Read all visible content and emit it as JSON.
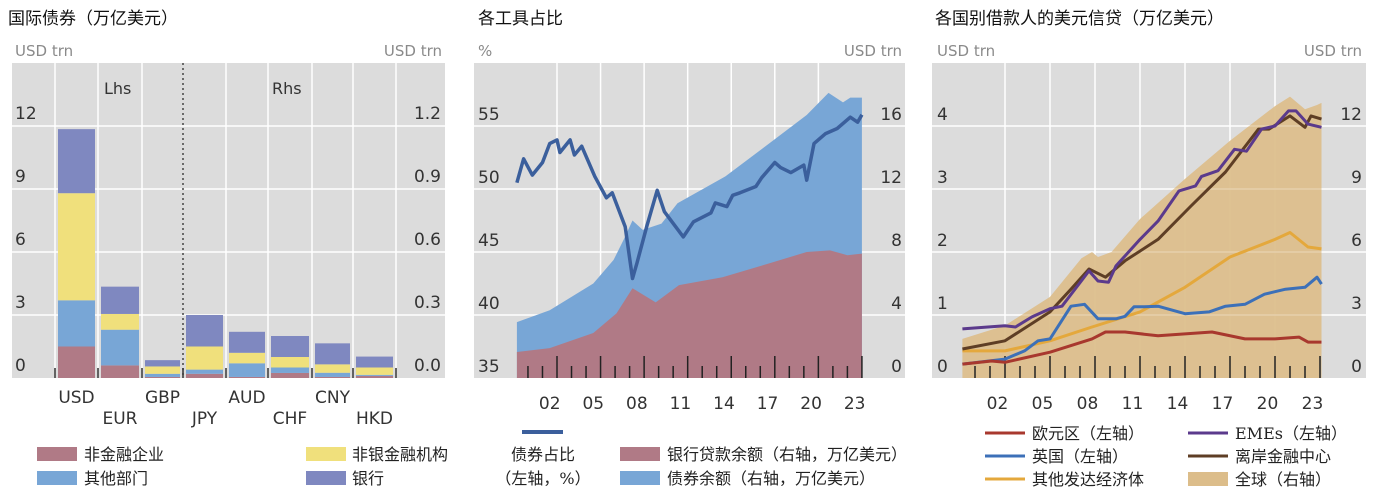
{
  "colors": {
    "plot_bg": "#dcdcdc",
    "grid": "#ffffff",
    "nonfin": "#b07a86",
    "other": "#78a6d6",
    "nbfi": "#f0e07c",
    "bank": "#7f88c0",
    "share_line": "#3b5f9c",
    "loans": "#b07a86",
    "bonds": "#78a6d6",
    "euro": "#a8382e",
    "uk": "#3c70b8",
    "other_adv": "#e4a83c",
    "emes": "#5b3a8c",
    "offshore": "#5e3e25",
    "global": "#dcbd8a"
  },
  "chart_data": [
    {
      "type": "bar",
      "stacked": true,
      "title": "国际债券（万亿美元）",
      "left_unit": "USD trn",
      "right_unit": "USD trn",
      "left_ticks": [
        "0",
        "3",
        "6",
        "9",
        "12"
      ],
      "right_ticks": [
        "0.0",
        "0.3",
        "0.6",
        "0.9",
        "1.2"
      ],
      "ylim_left": [
        0,
        15
      ],
      "ylim_right": [
        0,
        1.5
      ],
      "annotations": {
        "lhs": "Lhs",
        "rhs": "Rhs"
      },
      "categories": [
        "USD",
        "EUR",
        "GBP",
        "JPY",
        "AUD",
        "CHF",
        "CNY",
        "HKD"
      ],
      "axis": [
        "left",
        "left",
        "left",
        "right",
        "right",
        "right",
        "right",
        "right"
      ],
      "series": [
        {
          "name": "非金融企业",
          "color_key": "nonfin",
          "values": [
            1.5,
            0.6,
            0.05,
            0.02,
            0.005,
            0.024,
            0.005,
            0.01
          ]
        },
        {
          "name": "其他部门",
          "color_key": "other",
          "values": [
            2.2,
            1.7,
            0.15,
            0.02,
            0.065,
            0.026,
            0.02,
            0.005
          ]
        },
        {
          "name": "非银金融机构",
          "color_key": "nbfi",
          "values": [
            5.1,
            0.75,
            0.35,
            0.11,
            0.05,
            0.05,
            0.04,
            0.035
          ]
        },
        {
          "name": "银行",
          "color_key": "bank",
          "values": [
            3.05,
            1.3,
            0.3,
            0.15,
            0.1,
            0.1,
            0.1,
            0.052
          ]
        }
      ],
      "grid": true
    },
    {
      "type": "area+line",
      "title": "各工具占比",
      "left_unit": "%",
      "right_unit": "USD trn",
      "left_ticks": [
        35,
        40,
        45,
        50,
        55
      ],
      "right_ticks": [
        0,
        4,
        8,
        12,
        16
      ],
      "ylim_left": [
        35,
        60
      ],
      "ylim_right": [
        0,
        20
      ],
      "x_ticks": [
        "02",
        "05",
        "08",
        "11",
        "14",
        "17",
        "20",
        "23"
      ],
      "xlim": [
        2000,
        2024
      ],
      "line": {
        "name": "债券占比",
        "name2": "（左轴，%）",
        "axis": "left",
        "points": [
          [
            2000.24,
            50.5
          ],
          [
            2000.7,
            52.4
          ],
          [
            2001.3,
            51.1
          ],
          [
            2002,
            52.1
          ],
          [
            2002.5,
            53.6
          ],
          [
            2003,
            53.9
          ],
          [
            2003.2,
            52.9
          ],
          [
            2003.9,
            53.9
          ],
          [
            2004.2,
            52.7
          ],
          [
            2004.7,
            53.4
          ],
          [
            2005.6,
            51
          ],
          [
            2006.4,
            49.3
          ],
          [
            2006.8,
            49.7
          ],
          [
            2007.7,
            47
          ],
          [
            2008.2,
            42.9
          ],
          [
            2008.5,
            44.1
          ],
          [
            2009.2,
            47.1
          ],
          [
            2009.9,
            49.9
          ],
          [
            2010.4,
            48.2
          ],
          [
            2011.7,
            46.2
          ],
          [
            2012.4,
            47.4
          ],
          [
            2013.6,
            48.1
          ],
          [
            2013.9,
            48.9
          ],
          [
            2014.7,
            48.6
          ],
          [
            2015.1,
            49.5
          ],
          [
            2015.6,
            49.7
          ],
          [
            2016.7,
            50.2
          ],
          [
            2017.1,
            50.9
          ],
          [
            2018,
            52.1
          ],
          [
            2018.4,
            51.7
          ],
          [
            2019.1,
            51.3
          ],
          [
            2020,
            51.9
          ],
          [
            2020.2,
            50.7
          ],
          [
            2020.7,
            53.6
          ],
          [
            2021.5,
            54.4
          ],
          [
            2022.3,
            54.8
          ],
          [
            2023.2,
            55.7
          ],
          [
            2023.7,
            55.3
          ],
          [
            2024,
            55.9
          ]
        ]
      },
      "areas": [
        {
          "name": "银行贷款余额（右轴，万亿美元）",
          "color_key": "loans",
          "axis": "right",
          "points": [
            [
              2000.24,
              1.65
            ],
            [
              2002.5,
              1.9
            ],
            [
              2005.5,
              2.86
            ],
            [
              2007.1,
              4.1
            ],
            [
              2008.2,
              5.7
            ],
            [
              2009.8,
              4.8
            ],
            [
              2011.4,
              5.9
            ],
            [
              2014.4,
              6.4
            ],
            [
              2017.7,
              7.3
            ],
            [
              2020.2,
              8.0
            ],
            [
              2021.8,
              8.1
            ],
            [
              2023,
              7.8
            ],
            [
              2024,
              7.9
            ]
          ]
        },
        {
          "name": "债券余额（右轴，万亿美元）",
          "color_key": "bonds",
          "axis": "right",
          "stacked_total": true,
          "points": [
            [
              2000.24,
              3.55
            ],
            [
              2002.5,
              4.3
            ],
            [
              2005.5,
              6.0
            ],
            [
              2006.9,
              7.5
            ],
            [
              2007.6,
              8.8
            ],
            [
              2008.2,
              10.0
            ],
            [
              2008.9,
              9.4
            ],
            [
              2010.2,
              9.8
            ],
            [
              2011.3,
              11.1
            ],
            [
              2014.6,
              12.8
            ],
            [
              2018.2,
              15.3
            ],
            [
              2020.2,
              16.7
            ],
            [
              2021.7,
              18.1
            ],
            [
              2022.7,
              17.5
            ],
            [
              2023.2,
              17.8
            ],
            [
              2024,
              17.8
            ]
          ]
        }
      ],
      "grid": true
    },
    {
      "type": "line+area",
      "title": "各国别借款人的美元信贷（万亿美元）",
      "left_unit": "USD trn",
      "right_unit": "USD trn",
      "left_ticks": [
        0,
        1,
        2,
        3,
        4
      ],
      "right_ticks": [
        0,
        3,
        6,
        9,
        12
      ],
      "ylim_left": [
        0,
        5
      ],
      "ylim_right": [
        0,
        15
      ],
      "x_ticks": [
        "02",
        "05",
        "08",
        "11",
        "14",
        "17",
        "20",
        "23"
      ],
      "xlim": [
        2000,
        2024
      ],
      "area": {
        "name": "全球（右轴）",
        "color_key": "global",
        "axis": "right",
        "points": [
          [
            2000.16,
            1.86
          ],
          [
            2003,
            2.5
          ],
          [
            2006,
            3.86
          ],
          [
            2008.1,
            5.7
          ],
          [
            2008.8,
            6.0
          ],
          [
            2009.2,
            5.76
          ],
          [
            2010.1,
            6.0
          ],
          [
            2012,
            7.57
          ],
          [
            2015,
            9.48
          ],
          [
            2018,
            11.3
          ],
          [
            2021,
            12.95
          ],
          [
            2022,
            13.4
          ],
          [
            2023,
            12.8
          ],
          [
            2023.8,
            13.0
          ],
          [
            2024.1,
            13.1
          ]
        ]
      },
      "lines": [
        {
          "name": "其他发达经济体",
          "color_key": "other_adv",
          "axis": "left",
          "points": [
            [
              2000.16,
              0.43
            ],
            [
              2003,
              0.43
            ],
            [
              2006,
              0.59
            ],
            [
              2008.8,
              0.81
            ],
            [
              2012,
              1.05
            ],
            [
              2015,
              1.44
            ],
            [
              2018,
              1.92
            ],
            [
              2021,
              2.2
            ],
            [
              2022,
              2.31
            ],
            [
              2023.2,
              2.08
            ],
            [
              2024.1,
              2.05
            ]
          ]
        },
        {
          "name": "英国（左轴）",
          "color_key": "uk",
          "axis": "left",
          "points": [
            [
              2000.16,
              0.22
            ],
            [
              2003,
              0.3
            ],
            [
              2004.3,
              0.43
            ],
            [
              2005.2,
              0.59
            ],
            [
              2006,
              0.62
            ],
            [
              2007.4,
              1.14
            ],
            [
              2008.3,
              1.17
            ],
            [
              2009.2,
              0.94
            ],
            [
              2010.4,
              0.94
            ],
            [
              2011,
              0.98
            ],
            [
              2011.6,
              1.13
            ],
            [
              2012.3,
              1.13
            ],
            [
              2013.2,
              1.14
            ],
            [
              2015,
              1.02
            ],
            [
              2016.6,
              1.05
            ],
            [
              2017.7,
              1.14
            ],
            [
              2019,
              1.17
            ],
            [
              2020.3,
              1.33
            ],
            [
              2021.7,
              1.41
            ],
            [
              2023,
              1.44
            ],
            [
              2023.8,
              1.6
            ],
            [
              2024.1,
              1.49
            ]
          ]
        },
        {
          "name": "欧元区（左轴）",
          "color_key": "euro",
          "axis": "left",
          "points": [
            [
              2000.16,
              0.22
            ],
            [
              2002.1,
              0.27
            ],
            [
              2003,
              0.25
            ],
            [
              2006,
              0.41
            ],
            [
              2008.8,
              0.62
            ],
            [
              2009.7,
              0.73
            ],
            [
              2011,
              0.73
            ],
            [
              2013.2,
              0.67
            ],
            [
              2016.8,
              0.73
            ],
            [
              2019,
              0.62
            ],
            [
              2021,
              0.62
            ],
            [
              2022.6,
              0.65
            ],
            [
              2023.2,
              0.57
            ],
            [
              2024.1,
              0.57
            ]
          ]
        },
        {
          "name": "离岸金融中心",
          "color_key": "offshore",
          "axis": "left",
          "points": [
            [
              2000.16,
              0.46
            ],
            [
              2003,
              0.59
            ],
            [
              2006,
              1.05
            ],
            [
              2007.4,
              1.41
            ],
            [
              2008.6,
              1.73
            ],
            [
              2009.7,
              1.6
            ],
            [
              2011,
              1.86
            ],
            [
              2013.2,
              2.2
            ],
            [
              2015.4,
              2.73
            ],
            [
              2017.7,
              3.27
            ],
            [
              2019.9,
              3.95
            ],
            [
              2020.6,
              3.95
            ],
            [
              2022,
              4.16
            ],
            [
              2023,
              3.98
            ],
            [
              2023.4,
              4.16
            ],
            [
              2024.1,
              4.11
            ]
          ]
        },
        {
          "name": "EMEs（左轴）",
          "color_key": "emes",
          "axis": "left",
          "points": [
            [
              2000.16,
              0.78
            ],
            [
              2003,
              0.83
            ],
            [
              2003.7,
              0.81
            ],
            [
              2004.8,
              0.97
            ],
            [
              2006,
              1.1
            ],
            [
              2006.8,
              1.14
            ],
            [
              2008.6,
              1.7
            ],
            [
              2009.2,
              1.54
            ],
            [
              2009.9,
              1.52
            ],
            [
              2010.4,
              1.78
            ],
            [
              2012,
              2.2
            ],
            [
              2013.2,
              2.49
            ],
            [
              2014.6,
              2.97
            ],
            [
              2015.7,
              3.05
            ],
            [
              2016.1,
              3.2
            ],
            [
              2017.2,
              3.29
            ],
            [
              2018.3,
              3.63
            ],
            [
              2019.1,
              3.6
            ],
            [
              2020.1,
              3.95
            ],
            [
              2021,
              4.0
            ],
            [
              2021.9,
              4.24
            ],
            [
              2022.4,
              4.24
            ],
            [
              2023.2,
              4.03
            ],
            [
              2024.1,
              3.98
            ]
          ]
        }
      ],
      "legend_order": [
        [
          "欧元区（左轴）",
          "EMEs（左轴）"
        ],
        [
          "英国（左轴）",
          "离岸金融中心"
        ],
        [
          "其他发达经济体",
          "全球（右轴）"
        ]
      ],
      "grid": true
    }
  ]
}
